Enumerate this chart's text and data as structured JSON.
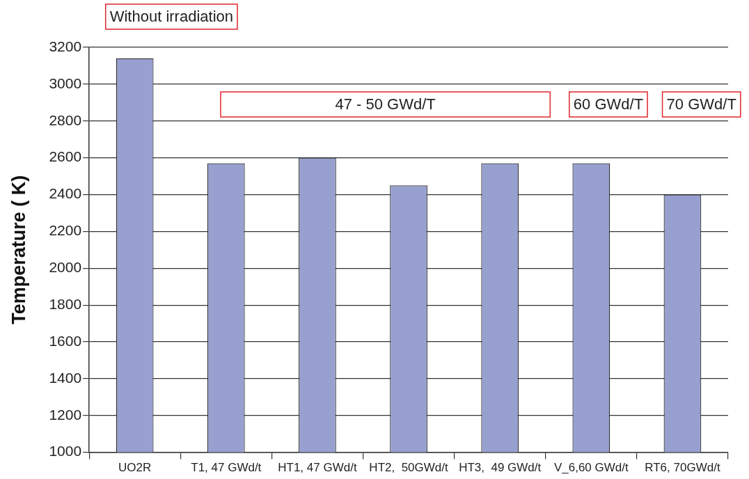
{
  "chart_data": {
    "type": "bar",
    "ylabel": "Temperature ( K)",
    "categories": [
      "UO2R",
      "T1, 47 GWd/t",
      "HT1, 47 GWd/t",
      "HT2,  50GWd/t",
      "HT3,  49 GWd/t",
      "V_6,60 GWd/t",
      "RT6, 70GWd/t"
    ],
    "values": [
      3140,
      2570,
      2600,
      2450,
      2570,
      2570,
      2400
    ],
    "color": "#98a0cf",
    "ylim": [
      1000,
      3200
    ],
    "yticks": [
      1000,
      1200,
      1400,
      1600,
      1800,
      2000,
      2200,
      2400,
      2600,
      2800,
      3000,
      3200
    ],
    "grid": "y",
    "annotations": [
      "Without irradiation",
      "47 - 50 GWd/T",
      "60 GWd/T",
      "70 GWd/T"
    ]
  }
}
